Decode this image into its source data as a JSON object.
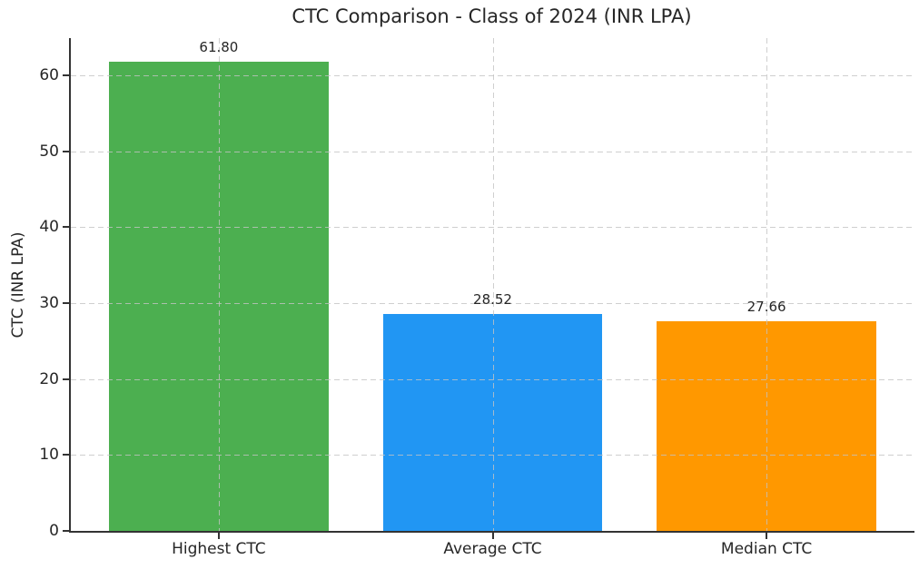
{
  "chart_data": {
    "type": "bar",
    "title": "CTC Comparison - Class of 2024 (INR LPA)",
    "xlabel": "",
    "ylabel": "CTC (INR LPA)",
    "categories": [
      "Highest CTC",
      "Average CTC",
      "Median CTC"
    ],
    "values": [
      61.8,
      28.52,
      27.66
    ],
    "value_labels": [
      "61.80",
      "28.52",
      "27.66"
    ],
    "bar_colors": [
      "#4CAF50",
      "#2196F3",
      "#FF9800"
    ],
    "yticks": [
      0,
      10,
      20,
      30,
      40,
      50,
      60
    ],
    "ylim": [
      0,
      64.9
    ],
    "grid": "dashed, horizontal and vertical at ticks, drawn over bars",
    "legend_position": "none",
    "spines": [
      "left",
      "bottom"
    ]
  }
}
